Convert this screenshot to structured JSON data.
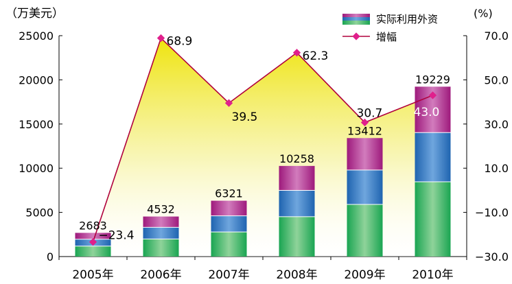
{
  "chart_data": {
    "type": "bar",
    "y_unit_label": "（万美元）",
    "y2_unit_label": "(%)",
    "categories": [
      "2005年",
      "2006年",
      "2007年",
      "2008年",
      "2009年",
      "2010年"
    ],
    "series": [
      {
        "name": "实际利用外资",
        "type": "bar",
        "axis": "left",
        "values": [
          2683,
          4532,
          6321,
          10258,
          13412,
          19229
        ]
      },
      {
        "name": "增幅",
        "type": "line",
        "axis": "right",
        "values": [
          -23.4,
          68.9,
          39.5,
          62.3,
          30.7,
          43.0
        ]
      }
    ],
    "ylim": [
      0,
      25000
    ],
    "yticks": [
      "0",
      "5000",
      "10000",
      "15000",
      "20000",
      "25000"
    ],
    "y2lim": [
      -30,
      70
    ],
    "y2ticks": [
      "−30.0",
      "−10.0",
      "10.0",
      "30.0",
      "50.0",
      "70.0"
    ],
    "line_labels": [
      "−23.4",
      "68.9",
      "39.5",
      "62.3",
      "30.7",
      "43.0"
    ],
    "legend_position": "top-right",
    "colors": {
      "line": "#b0003c",
      "marker": "#e0208c",
      "area_top": "#f2e300",
      "area_bottom": "#ffffff",
      "bar_bottom": "#13a04a",
      "bar_middle": "#1f6ab7",
      "bar_top": "#a2187f"
    }
  }
}
